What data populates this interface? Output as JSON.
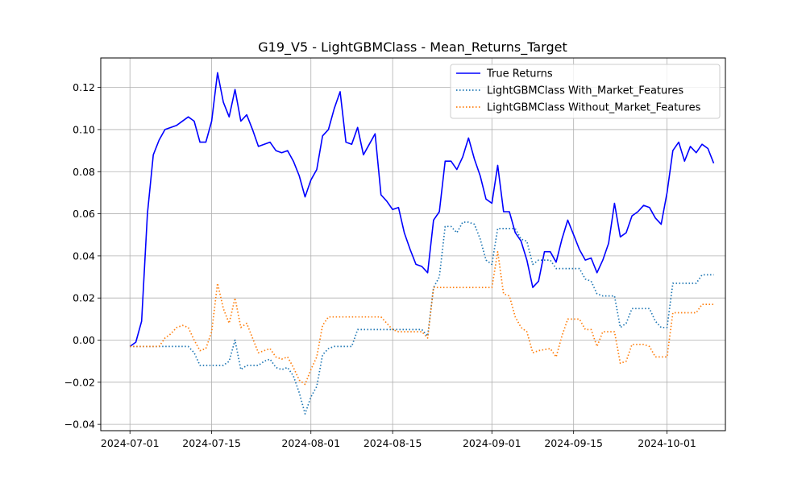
{
  "chart_data": {
    "type": "line",
    "title": "G19_V5 - LightGBMClass - Mean_Returns_Target",
    "xlabel": "",
    "ylabel": "",
    "x_type": "date",
    "xlim": [
      "2024-06-26",
      "2024-10-11"
    ],
    "ylim": [
      -0.043,
      0.134
    ],
    "x_ticks": [
      "2024-07-01",
      "2024-07-15",
      "2024-08-01",
      "2024-08-15",
      "2024-09-01",
      "2024-09-15",
      "2024-10-01"
    ],
    "y_ticks": [
      -0.04,
      -0.02,
      0.0,
      0.02,
      0.04,
      0.06,
      0.08,
      0.1,
      0.12
    ],
    "y_tick_labels": [
      "−0.04",
      "−0.02",
      "0.00",
      "0.02",
      "0.04",
      "0.06",
      "0.08",
      "0.10",
      "0.12"
    ],
    "grid": true,
    "legend_position": "top-right",
    "series": [
      {
        "name": "True Returns",
        "color": "#0000ff",
        "style": "solid",
        "points": [
          [
            "2024-07-01",
            -0.003
          ],
          [
            "2024-07-02",
            -0.001
          ],
          [
            "2024-07-03",
            0.009
          ],
          [
            "2024-07-04",
            0.06
          ],
          [
            "2024-07-05",
            0.088
          ],
          [
            "2024-07-06",
            0.095
          ],
          [
            "2024-07-07",
            0.1
          ],
          [
            "2024-07-09",
            0.102
          ],
          [
            "2024-07-11",
            0.106
          ],
          [
            "2024-07-12",
            0.104
          ],
          [
            "2024-07-13",
            0.094
          ],
          [
            "2024-07-14",
            0.094
          ],
          [
            "2024-07-15",
            0.104
          ],
          [
            "2024-07-16",
            0.127
          ],
          [
            "2024-07-17",
            0.113
          ],
          [
            "2024-07-18",
            0.106
          ],
          [
            "2024-07-19",
            0.119
          ],
          [
            "2024-07-20",
            0.104
          ],
          [
            "2024-07-21",
            0.107
          ],
          [
            "2024-07-22",
            0.1
          ],
          [
            "2024-07-23",
            0.092
          ],
          [
            "2024-07-24",
            0.093
          ],
          [
            "2024-07-25",
            0.094
          ],
          [
            "2024-07-26",
            0.09
          ],
          [
            "2024-07-27",
            0.089
          ],
          [
            "2024-07-28",
            0.09
          ],
          [
            "2024-07-29",
            0.085
          ],
          [
            "2024-07-30",
            0.078
          ],
          [
            "2024-07-31",
            0.068
          ],
          [
            "2024-08-01",
            0.076
          ],
          [
            "2024-08-02",
            0.081
          ],
          [
            "2024-08-03",
            0.097
          ],
          [
            "2024-08-04",
            0.1
          ],
          [
            "2024-08-05",
            0.11
          ],
          [
            "2024-08-06",
            0.118
          ],
          [
            "2024-08-07",
            0.094
          ],
          [
            "2024-08-08",
            0.093
          ],
          [
            "2024-08-09",
            0.101
          ],
          [
            "2024-08-10",
            0.088
          ],
          [
            "2024-08-11",
            0.093
          ],
          [
            "2024-08-12",
            0.098
          ],
          [
            "2024-08-13",
            0.069
          ],
          [
            "2024-08-14",
            0.066
          ],
          [
            "2024-08-15",
            0.062
          ],
          [
            "2024-08-16",
            0.063
          ],
          [
            "2024-08-17",
            0.051
          ],
          [
            "2024-08-18",
            0.043
          ],
          [
            "2024-08-19",
            0.036
          ],
          [
            "2024-08-20",
            0.035
          ],
          [
            "2024-08-21",
            0.032
          ],
          [
            "2024-08-22",
            0.057
          ],
          [
            "2024-08-23",
            0.061
          ],
          [
            "2024-08-24",
            0.085
          ],
          [
            "2024-08-25",
            0.085
          ],
          [
            "2024-08-26",
            0.081
          ],
          [
            "2024-08-27",
            0.087
          ],
          [
            "2024-08-28",
            0.096
          ],
          [
            "2024-08-29",
            0.086
          ],
          [
            "2024-08-30",
            0.078
          ],
          [
            "2024-08-31",
            0.067
          ],
          [
            "2024-09-01",
            0.065
          ],
          [
            "2024-09-02",
            0.083
          ],
          [
            "2024-09-03",
            0.061
          ],
          [
            "2024-09-04",
            0.061
          ],
          [
            "2024-09-05",
            0.051
          ],
          [
            "2024-09-06",
            0.047
          ],
          [
            "2024-09-07",
            0.038
          ],
          [
            "2024-09-08",
            0.025
          ],
          [
            "2024-09-09",
            0.028
          ],
          [
            "2024-09-10",
            0.042
          ],
          [
            "2024-09-11",
            0.042
          ],
          [
            "2024-09-12",
            0.037
          ],
          [
            "2024-09-13",
            0.048
          ],
          [
            "2024-09-14",
            0.057
          ],
          [
            "2024-09-15",
            0.05
          ],
          [
            "2024-09-16",
            0.043
          ],
          [
            "2024-09-17",
            0.038
          ],
          [
            "2024-09-18",
            0.039
          ],
          [
            "2024-09-19",
            0.032
          ],
          [
            "2024-09-20",
            0.038
          ],
          [
            "2024-09-21",
            0.046
          ],
          [
            "2024-09-22",
            0.065
          ],
          [
            "2024-09-23",
            0.049
          ],
          [
            "2024-09-24",
            0.051
          ],
          [
            "2024-09-25",
            0.059
          ],
          [
            "2024-09-26",
            0.061
          ],
          [
            "2024-09-27",
            0.064
          ],
          [
            "2024-09-28",
            0.063
          ],
          [
            "2024-09-29",
            0.058
          ],
          [
            "2024-09-30",
            0.055
          ],
          [
            "2024-10-01",
            0.07
          ],
          [
            "2024-10-02",
            0.09
          ],
          [
            "2024-10-03",
            0.094
          ],
          [
            "2024-10-04",
            0.085
          ],
          [
            "2024-10-05",
            0.092
          ],
          [
            "2024-10-06",
            0.089
          ],
          [
            "2024-10-07",
            0.093
          ],
          [
            "2024-10-08",
            0.091
          ],
          [
            "2024-10-09",
            0.084
          ]
        ]
      },
      {
        "name": "LightGBMClass With_Market_Features",
        "color": "#1f77b4",
        "style": "dotted",
        "points": [
          [
            "2024-07-01",
            -0.003
          ],
          [
            "2024-07-06",
            -0.003
          ],
          [
            "2024-07-10",
            -0.003
          ],
          [
            "2024-07-11",
            -0.003
          ],
          [
            "2024-07-12",
            -0.006
          ],
          [
            "2024-07-13",
            -0.012
          ],
          [
            "2024-07-17",
            -0.012
          ],
          [
            "2024-07-18",
            -0.01
          ],
          [
            "2024-07-19",
            0.0
          ],
          [
            "2024-07-20",
            -0.014
          ],
          [
            "2024-07-21",
            -0.012
          ],
          [
            "2024-07-23",
            -0.012
          ],
          [
            "2024-07-24",
            -0.01
          ],
          [
            "2024-07-25",
            -0.009
          ],
          [
            "2024-07-26",
            -0.013
          ],
          [
            "2024-07-27",
            -0.014
          ],
          [
            "2024-07-28",
            -0.013
          ],
          [
            "2024-07-29",
            -0.017
          ],
          [
            "2024-07-30",
            -0.025
          ],
          [
            "2024-07-31",
            -0.035
          ],
          [
            "2024-08-01",
            -0.027
          ],
          [
            "2024-08-02",
            -0.022
          ],
          [
            "2024-08-03",
            -0.007
          ],
          [
            "2024-08-04",
            -0.004
          ],
          [
            "2024-08-05",
            -0.003
          ],
          [
            "2024-08-08",
            -0.003
          ],
          [
            "2024-08-09",
            0.005
          ],
          [
            "2024-08-19",
            0.005
          ],
          [
            "2024-08-20",
            0.005
          ],
          [
            "2024-08-21",
            0.002
          ],
          [
            "2024-08-22",
            0.025
          ],
          [
            "2024-08-23",
            0.03
          ],
          [
            "2024-08-24",
            0.054
          ],
          [
            "2024-08-25",
            0.054
          ],
          [
            "2024-08-26",
            0.051
          ],
          [
            "2024-08-27",
            0.056
          ],
          [
            "2024-08-28",
            0.056
          ],
          [
            "2024-08-29",
            0.055
          ],
          [
            "2024-08-30",
            0.048
          ],
          [
            "2024-08-31",
            0.038
          ],
          [
            "2024-09-01",
            0.036
          ],
          [
            "2024-09-02",
            0.053
          ],
          [
            "2024-09-05",
            0.053
          ],
          [
            "2024-09-06",
            0.048
          ],
          [
            "2024-09-07",
            0.047
          ],
          [
            "2024-09-08",
            0.036
          ],
          [
            "2024-09-09",
            0.038
          ],
          [
            "2024-09-11",
            0.038
          ],
          [
            "2024-09-12",
            0.034
          ],
          [
            "2024-09-16",
            0.034
          ],
          [
            "2024-09-17",
            0.029
          ],
          [
            "2024-09-18",
            0.028
          ],
          [
            "2024-09-19",
            0.022
          ],
          [
            "2024-09-20",
            0.021
          ],
          [
            "2024-09-22",
            0.021
          ],
          [
            "2024-09-23",
            0.006
          ],
          [
            "2024-09-24",
            0.008
          ],
          [
            "2024-09-25",
            0.015
          ],
          [
            "2024-09-28",
            0.015
          ],
          [
            "2024-09-29",
            0.009
          ],
          [
            "2024-09-30",
            0.006
          ],
          [
            "2024-10-01",
            0.006
          ],
          [
            "2024-10-02",
            0.027
          ],
          [
            "2024-10-03",
            0.027
          ],
          [
            "2024-10-06",
            0.027
          ],
          [
            "2024-10-07",
            0.031
          ],
          [
            "2024-10-09",
            0.031
          ]
        ]
      },
      {
        "name": "LightGBMClass Without_Market_Features",
        "color": "#ff7f0e",
        "style": "dotted",
        "points": [
          [
            "2024-07-01",
            -0.003
          ],
          [
            "2024-07-06",
            -0.003
          ],
          [
            "2024-07-07",
            0.001
          ],
          [
            "2024-07-08",
            0.003
          ],
          [
            "2024-07-09",
            0.006
          ],
          [
            "2024-07-10",
            0.007
          ],
          [
            "2024-07-11",
            0.006
          ],
          [
            "2024-07-12",
            0.0
          ],
          [
            "2024-07-13",
            -0.005
          ],
          [
            "2024-07-14",
            -0.004
          ],
          [
            "2024-07-15",
            0.004
          ],
          [
            "2024-07-16",
            0.027
          ],
          [
            "2024-07-17",
            0.015
          ],
          [
            "2024-07-18",
            0.008
          ],
          [
            "2024-07-19",
            0.02
          ],
          [
            "2024-07-20",
            0.006
          ],
          [
            "2024-07-21",
            0.008
          ],
          [
            "2024-07-22",
            0.001
          ],
          [
            "2024-07-23",
            -0.006
          ],
          [
            "2024-07-24",
            -0.005
          ],
          [
            "2024-07-25",
            -0.004
          ],
          [
            "2024-07-26",
            -0.008
          ],
          [
            "2024-07-27",
            -0.009
          ],
          [
            "2024-07-28",
            -0.008
          ],
          [
            "2024-07-29",
            -0.013
          ],
          [
            "2024-07-30",
            -0.019
          ],
          [
            "2024-07-31",
            -0.021
          ],
          [
            "2024-08-01",
            -0.014
          ],
          [
            "2024-08-02",
            -0.008
          ],
          [
            "2024-08-03",
            0.007
          ],
          [
            "2024-08-04",
            0.011
          ],
          [
            "2024-08-05",
            0.011
          ],
          [
            "2024-08-12",
            0.011
          ],
          [
            "2024-08-13",
            0.011
          ],
          [
            "2024-08-14",
            0.008
          ],
          [
            "2024-08-15",
            0.005
          ],
          [
            "2024-08-16",
            0.004
          ],
          [
            "2024-08-20",
            0.004
          ],
          [
            "2024-08-21",
            0.001
          ],
          [
            "2024-08-22",
            0.025
          ],
          [
            "2024-08-31",
            0.025
          ],
          [
            "2024-09-01",
            0.025
          ],
          [
            "2024-09-02",
            0.042
          ],
          [
            "2024-09-03",
            0.022
          ],
          [
            "2024-09-04",
            0.021
          ],
          [
            "2024-09-05",
            0.011
          ],
          [
            "2024-09-06",
            0.006
          ],
          [
            "2024-09-07",
            0.004
          ],
          [
            "2024-09-08",
            -0.006
          ],
          [
            "2024-09-09",
            -0.005
          ],
          [
            "2024-09-11",
            -0.004
          ],
          [
            "2024-09-12",
            -0.008
          ],
          [
            "2024-09-13",
            0.002
          ],
          [
            "2024-09-14",
            0.01
          ],
          [
            "2024-09-16",
            0.01
          ],
          [
            "2024-09-17",
            0.005
          ],
          [
            "2024-09-18",
            0.005
          ],
          [
            "2024-09-19",
            -0.003
          ],
          [
            "2024-09-20",
            0.004
          ],
          [
            "2024-09-22",
            0.004
          ],
          [
            "2024-09-23",
            -0.011
          ],
          [
            "2024-09-24",
            -0.01
          ],
          [
            "2024-09-25",
            -0.002
          ],
          [
            "2024-09-27",
            -0.002
          ],
          [
            "2024-09-28",
            -0.003
          ],
          [
            "2024-09-29",
            -0.008
          ],
          [
            "2024-09-30",
            -0.008
          ],
          [
            "2024-10-01",
            -0.008
          ],
          [
            "2024-10-02",
            0.013
          ],
          [
            "2024-10-06",
            0.013
          ],
          [
            "2024-10-07",
            0.017
          ],
          [
            "2024-10-09",
            0.017
          ]
        ]
      }
    ]
  }
}
